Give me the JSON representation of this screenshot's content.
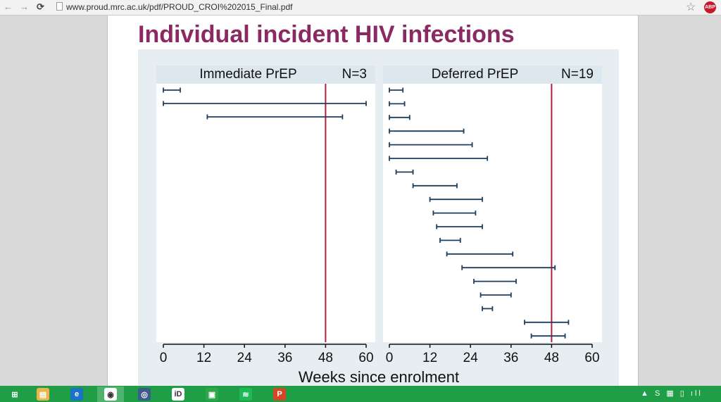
{
  "browser": {
    "url": "www.proud.mrc.ac.uk/pdf/PROUD_CROI%202015_Final.pdf",
    "back_icon": "back-arrow-icon",
    "forward_icon": "forward-arrow-icon",
    "reload_icon": "reload-icon",
    "bookmark_icon": "star-icon",
    "adblock_label": "ABP"
  },
  "slide": {
    "title": "Individual incident HIV infections"
  },
  "chart_data": {
    "type": "interval",
    "xlabel": "Weeks since enrolment",
    "xlim": [
      0,
      60
    ],
    "xticks": [
      0,
      12,
      24,
      36,
      48,
      60
    ],
    "reference_line": 48,
    "colors": {
      "interval": "#1f3e5c",
      "reference": "#b0213f",
      "panel_header": "#dce7ee",
      "panel": "#ffffff"
    },
    "panels": [
      {
        "title": "Immediate PrEP",
        "n_label": "N=3",
        "intervals": [
          [
            0,
            5
          ],
          [
            0,
            60
          ],
          [
            13,
            53
          ]
        ]
      },
      {
        "title": "Deferred PrEP",
        "n_label": "N=19",
        "intervals": [
          [
            0,
            4
          ],
          [
            0,
            4.5
          ],
          [
            0,
            6
          ],
          [
            0,
            22
          ],
          [
            0,
            24.5
          ],
          [
            0,
            29
          ],
          [
            2,
            7
          ],
          [
            7,
            20
          ],
          [
            12,
            27.5
          ],
          [
            13,
            25.5
          ],
          [
            14,
            27.5
          ],
          [
            15,
            21
          ],
          [
            17,
            36.5
          ],
          [
            21.5,
            49
          ],
          [
            25,
            37.5
          ],
          [
            27,
            36
          ],
          [
            27.5,
            30.5
          ],
          [
            40,
            53
          ],
          [
            42,
            52
          ]
        ]
      }
    ]
  },
  "taskbar": {
    "apps": [
      {
        "name": "windows-start-icon",
        "glyph": "⊞"
      },
      {
        "name": "file-explorer-icon",
        "glyph": "▤"
      },
      {
        "name": "internet-explorer-icon",
        "glyph": "e"
      },
      {
        "name": "chrome-icon",
        "glyph": "◉"
      },
      {
        "name": "security-app-icon",
        "glyph": "◎"
      },
      {
        "name": "id-app-icon",
        "glyph": "iD"
      },
      {
        "name": "store-icon",
        "glyph": "▣"
      },
      {
        "name": "spotify-icon",
        "glyph": "≋"
      },
      {
        "name": "powerpoint-icon",
        "glyph": "P"
      }
    ],
    "tray_text": "▲ S ▦ ▯ ıll"
  }
}
